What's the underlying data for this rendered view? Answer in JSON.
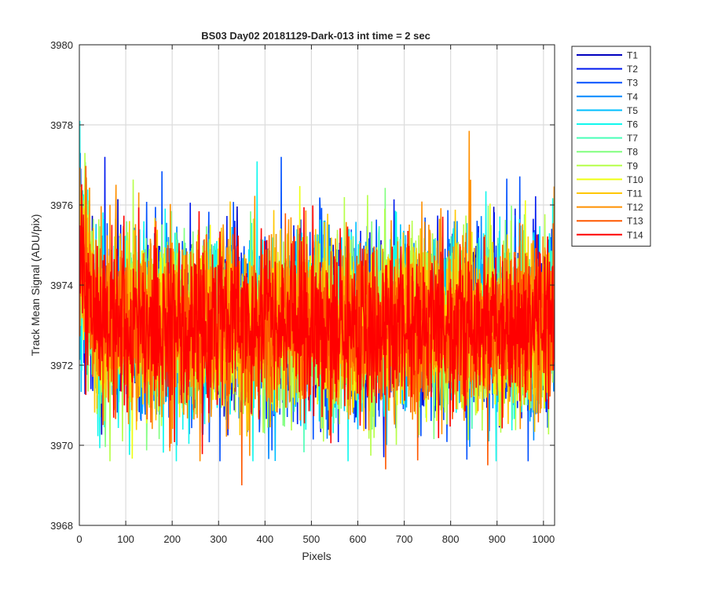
{
  "chart_data": {
    "type": "line",
    "title": "BS03 Day02 20181129-Dark-013 int time = 2 sec",
    "xlabel": "Pixels",
    "ylabel": "Track Mean Signal (ADU/pix)",
    "xlim": [
      0,
      1024
    ],
    "ylim": [
      3968,
      3980
    ],
    "xticks": [
      0,
      100,
      200,
      300,
      400,
      500,
      600,
      700,
      800,
      900,
      1000
    ],
    "yticks": [
      3968,
      3970,
      3972,
      3974,
      3976,
      3978,
      3980
    ],
    "grid": true,
    "legend_position": "outside-right-top",
    "series": [
      {
        "name": "T1",
        "color": "#0000bf"
      },
      {
        "name": "T2",
        "color": "#0019ef"
      },
      {
        "name": "T3",
        "color": "#0050ff"
      },
      {
        "name": "T4",
        "color": "#0088ff"
      },
      {
        "name": "T5",
        "color": "#00bfff"
      },
      {
        "name": "T6",
        "color": "#11f7ee"
      },
      {
        "name": "T7",
        "color": "#49ffb6"
      },
      {
        "name": "T8",
        "color": "#80ff7f"
      },
      {
        "name": "T9",
        "color": "#b6ff49"
      },
      {
        "name": "T10",
        "color": "#eeff11"
      },
      {
        "name": "T11",
        "color": "#ffc700"
      },
      {
        "name": "T12",
        "color": "#ff9000"
      },
      {
        "name": "T13",
        "color": "#ff5800"
      },
      {
        "name": "T14",
        "color": "#ff0000"
      }
    ],
    "series_model": {
      "points_per_series": 1024,
      "mean_near_start": 3975,
      "mean_plateau": 3973,
      "mean_edge_rise_end": 3973.3,
      "noise_sd": 1.1,
      "notable_values": [
        {
          "series": "T6",
          "x": 1,
          "y": 3978.1
        },
        {
          "series": "T12",
          "x": 840,
          "y": 3977.85
        },
        {
          "series": "T13",
          "x": 350,
          "y": 3969.0
        },
        {
          "series": "T13",
          "x": 660,
          "y": 3969.4
        },
        {
          "series": "T13",
          "x": 880,
          "y": 3969.5
        },
        {
          "series": "T2",
          "x": 55,
          "y": 3977.2
        },
        {
          "series": "T3",
          "x": 435,
          "y": 3977.2
        }
      ]
    }
  }
}
